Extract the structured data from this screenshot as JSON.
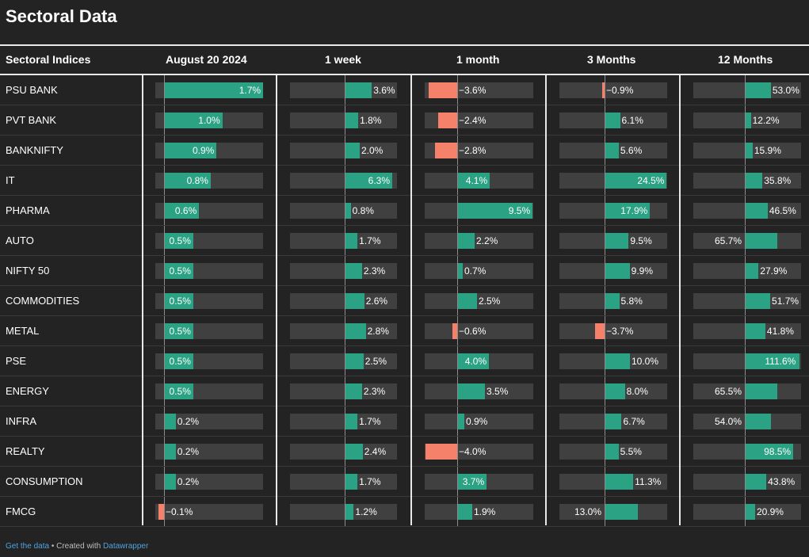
{
  "title": "Sectoral Data",
  "header": {
    "first_col": "Sectoral Indices",
    "columns": [
      "August 20 2024",
      "1 week",
      "1 month",
      "3 Months",
      "12 Months"
    ]
  },
  "colors": {
    "positive": "#2ba283",
    "negative": "#f5816a",
    "track": "#404040",
    "background": "#232323"
  },
  "footer": {
    "link_label": "Get the data",
    "separator": " • Created with ",
    "credit": "Datawrapper"
  },
  "chart_data": {
    "type": "table",
    "columns": [
      "August 20 2024",
      "1 week",
      "1 month",
      "3 Months",
      "12 Months"
    ],
    "unit": "%",
    "rows": [
      {
        "name": "PSU BANK",
        "labels": [
          "1.7%",
          "3.6%",
          "−3.6%",
          "−0.9%",
          "53.0%"
        ],
        "values": [
          1.7,
          3.6,
          -3.6,
          -0.9,
          53.0
        ]
      },
      {
        "name": "PVT BANK",
        "labels": [
          "1.0%",
          "1.8%",
          "−2.4%",
          "6.1%",
          "12.2%"
        ],
        "values": [
          1.0,
          1.8,
          -2.4,
          6.1,
          12.2
        ]
      },
      {
        "name": "BANKNIFTY",
        "labels": [
          "0.9%",
          "2.0%",
          "−2.8%",
          "5.6%",
          "15.9%"
        ],
        "values": [
          0.9,
          2.0,
          -2.8,
          5.6,
          15.9
        ]
      },
      {
        "name": "IT",
        "labels": [
          "0.8%",
          "6.3%",
          "4.1%",
          "24.5%",
          "35.8%"
        ],
        "values": [
          0.8,
          6.3,
          4.1,
          24.5,
          35.8
        ]
      },
      {
        "name": "PHARMA",
        "labels": [
          "0.6%",
          "0.8%",
          "9.5%",
          "17.9%",
          "46.5%"
        ],
        "values": [
          0.6,
          0.8,
          9.5,
          17.9,
          46.5
        ]
      },
      {
        "name": "AUTO",
        "labels": [
          "0.5%",
          "1.7%",
          "2.2%",
          "9.5%",
          "65.7%"
        ],
        "values": [
          0.5,
          1.7,
          2.2,
          9.5,
          65.7
        ]
      },
      {
        "name": "NIFTY 50",
        "labels": [
          "0.5%",
          "2.3%",
          "0.7%",
          "9.9%",
          "27.9%"
        ],
        "values": [
          0.5,
          2.3,
          0.7,
          9.9,
          27.9
        ]
      },
      {
        "name": "COMMODITIES",
        "labels": [
          "0.5%",
          "2.6%",
          "2.5%",
          "5.8%",
          "51.7%"
        ],
        "values": [
          0.5,
          2.6,
          2.5,
          5.8,
          51.7
        ]
      },
      {
        "name": "METAL",
        "labels": [
          "0.5%",
          "2.8%",
          "−0.6%",
          "−3.7%",
          "41.8%"
        ],
        "values": [
          0.5,
          2.8,
          -0.6,
          -3.7,
          41.8
        ]
      },
      {
        "name": "PSE",
        "labels": [
          "0.5%",
          "2.5%",
          "4.0%",
          "10.0%",
          "111.6%"
        ],
        "values": [
          0.5,
          2.5,
          4.0,
          10.0,
          111.6
        ]
      },
      {
        "name": "ENERGY",
        "labels": [
          "0.5%",
          "2.3%",
          "3.5%",
          "8.0%",
          "65.5%"
        ],
        "values": [
          0.5,
          2.3,
          3.5,
          8.0,
          65.5
        ]
      },
      {
        "name": "INFRA",
        "labels": [
          "0.2%",
          "1.7%",
          "0.9%",
          "6.7%",
          "54.0%"
        ],
        "values": [
          0.2,
          1.7,
          0.9,
          6.7,
          54.0
        ]
      },
      {
        "name": "REALTY",
        "labels": [
          "0.2%",
          "2.4%",
          "−4.0%",
          "5.5%",
          "98.5%"
        ],
        "values": [
          0.2,
          2.4,
          -4.0,
          5.5,
          98.5
        ]
      },
      {
        "name": "CONSUMPTION",
        "labels": [
          "0.2%",
          "1.7%",
          "3.7%",
          "11.3%",
          "43.8%"
        ],
        "values": [
          0.2,
          1.7,
          3.7,
          11.3,
          43.8
        ]
      },
      {
        "name": "FMCG",
        "labels": [
          "−0.1%",
          "1.2%",
          "1.9%",
          "13.0%",
          "20.9%"
        ],
        "values": [
          -0.1,
          1.2,
          1.9,
          13.0,
          20.9
        ]
      }
    ]
  }
}
